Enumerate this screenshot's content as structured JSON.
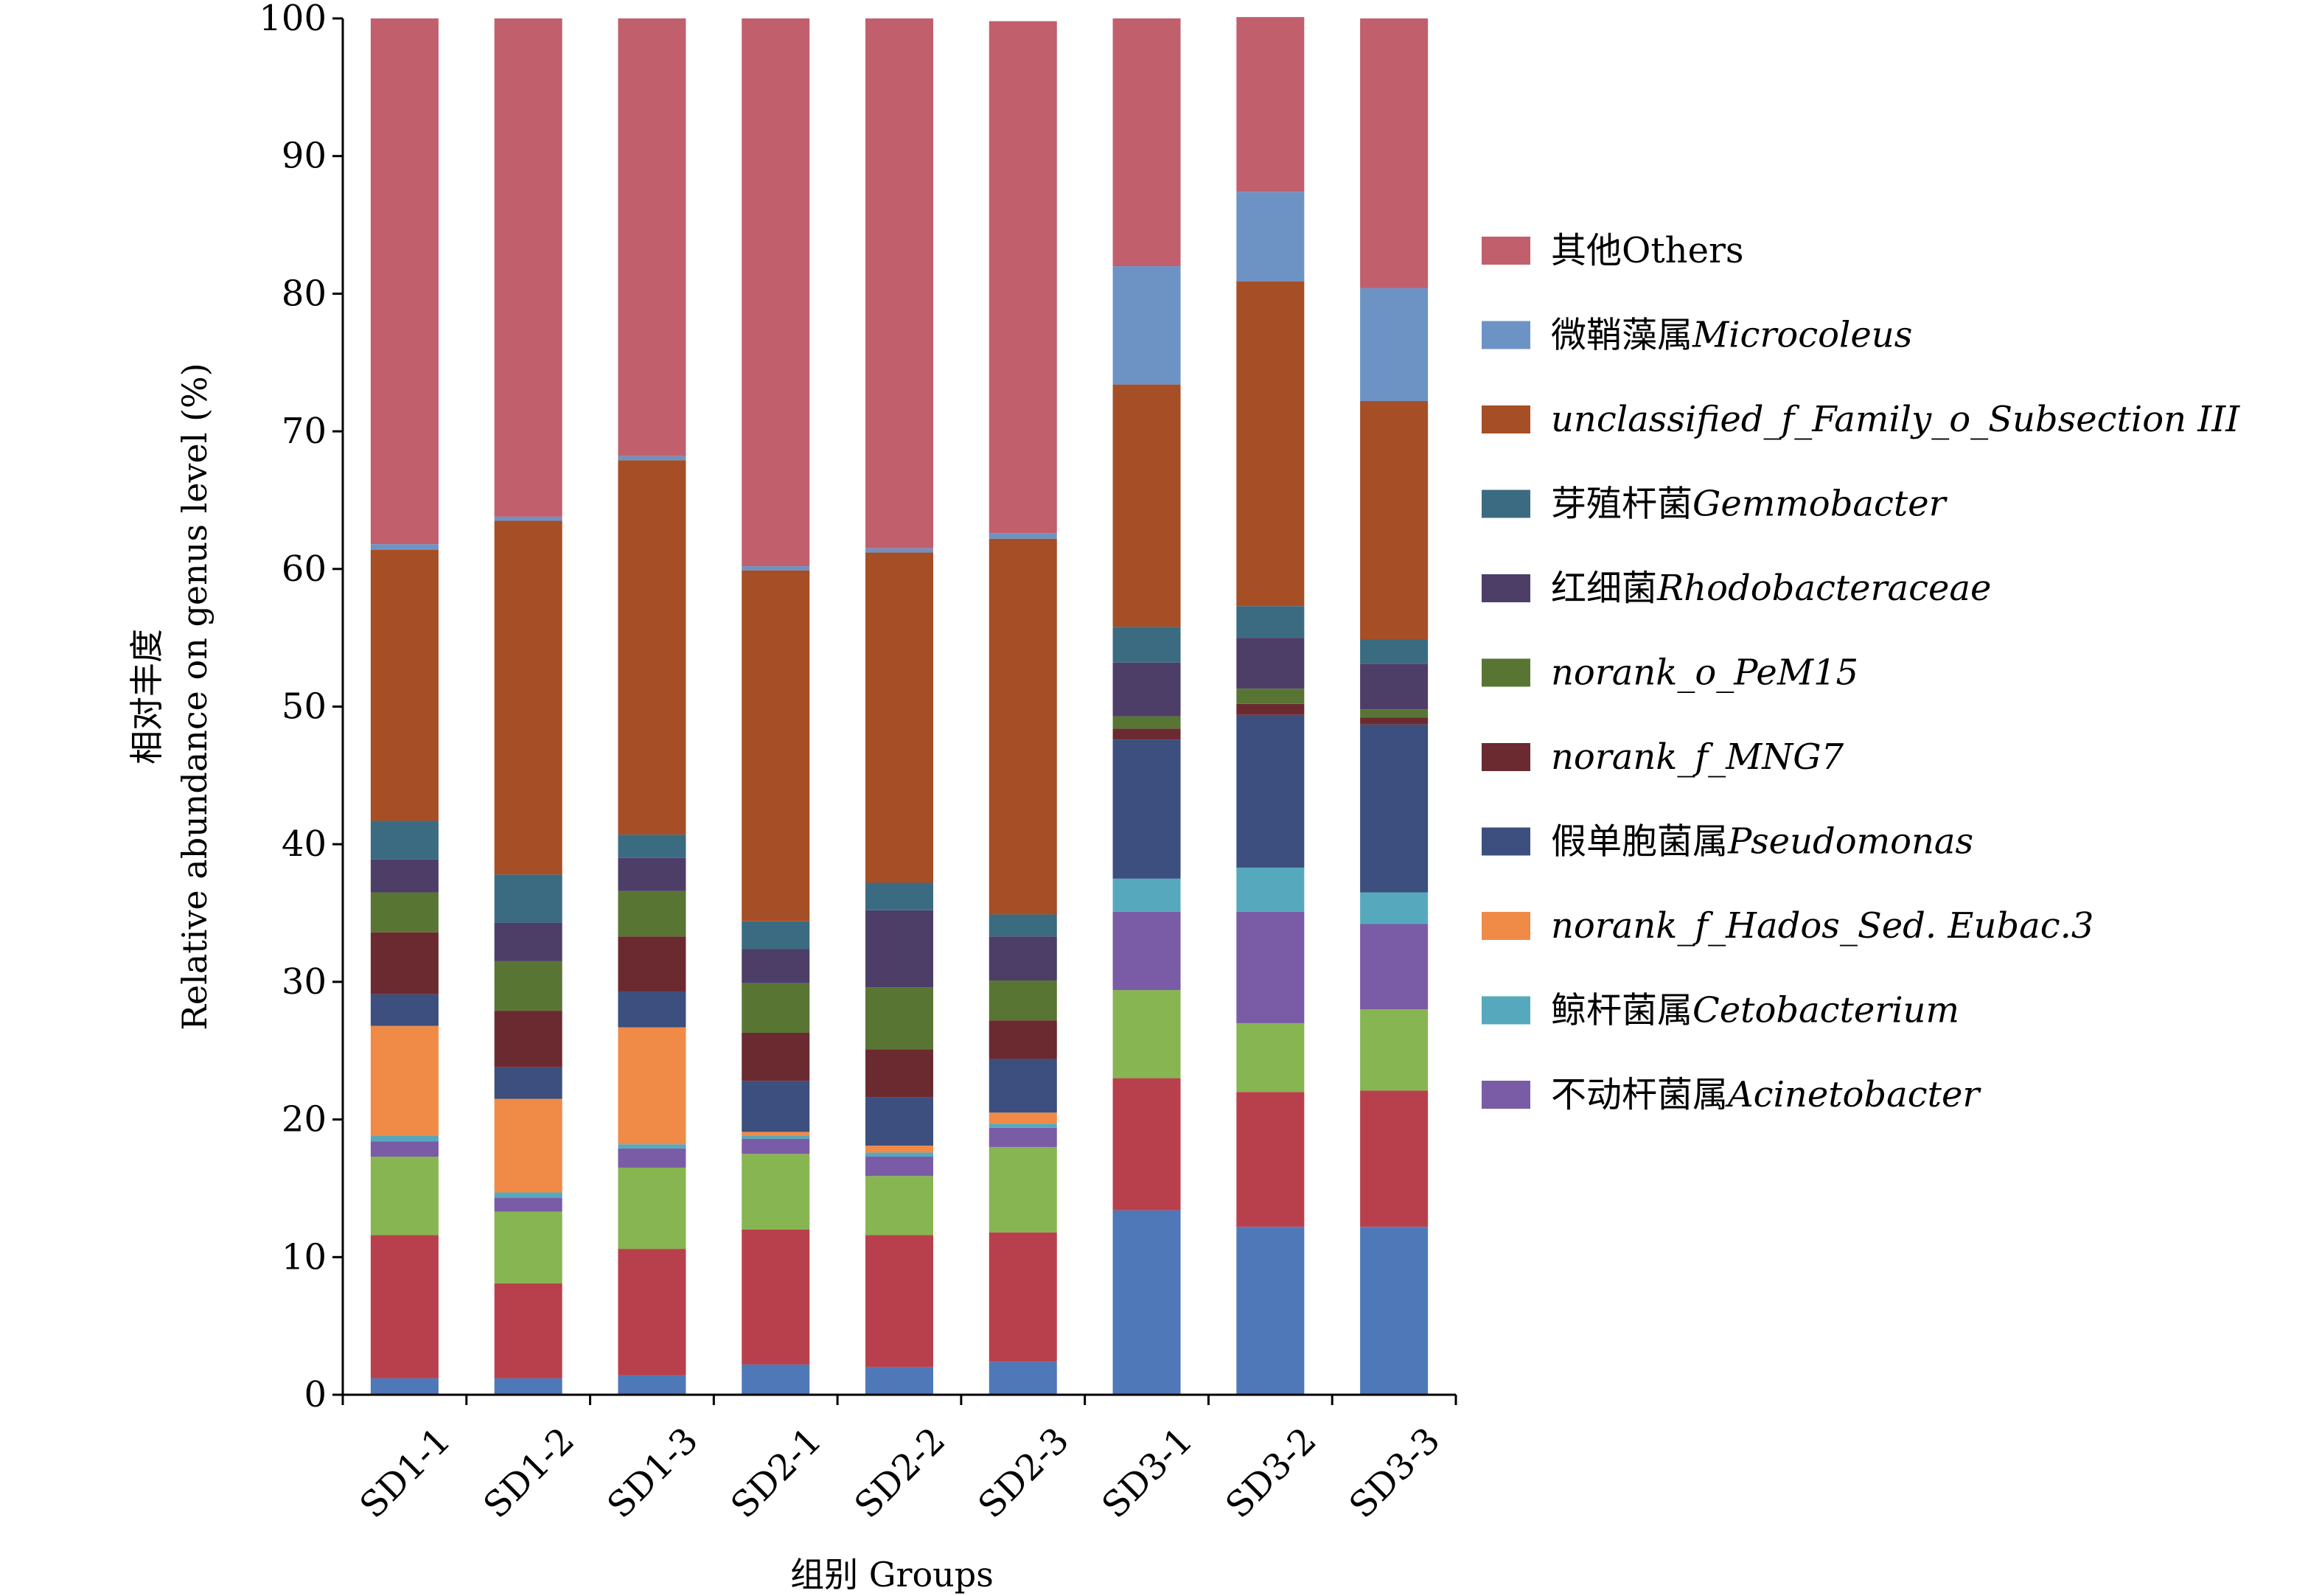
{
  "chart_data": {
    "type": "bar",
    "stacked": true,
    "xlabel": "组别 Groups",
    "ylabel": [
      "相对丰度",
      "Relative abundance on genus level (%)"
    ],
    "ylim": [
      0,
      100
    ],
    "yticks": [
      0,
      10,
      20,
      30,
      40,
      50,
      60,
      70,
      80,
      90,
      100
    ],
    "categories": [
      "SD1-1",
      "SD1-2",
      "SD1-3",
      "SD2-1",
      "SD2-2",
      "SD2-3",
      "SD3-1",
      "SD3-2",
      "SD3-3"
    ],
    "legend_position": "right",
    "series": [
      {
        "key": "s_bottom_blue",
        "color": "#4f78b8",
        "values": [
          1.2,
          1.2,
          1.4,
          2.2,
          2.0,
          2.4,
          13.4,
          12.2,
          12.2
        ]
      },
      {
        "key": "s_red",
        "color": "#b8404c",
        "values": [
          10.4,
          6.9,
          9.2,
          9.8,
          9.6,
          9.4,
          9.6,
          9.8,
          9.9
        ]
      },
      {
        "key": "s_green",
        "color": "#87b551",
        "values": [
          5.7,
          5.2,
          5.9,
          5.5,
          4.3,
          6.2,
          6.4,
          5.0,
          5.9
        ]
      },
      {
        "name": "不动杆菌属Acinetobacter",
        "name_zh": "不动杆菌属",
        "name_sci": "Acinetobacter",
        "italic": true,
        "color": "#7a5ba6",
        "values": [
          1.1,
          1.0,
          1.4,
          1.1,
          1.4,
          1.4,
          5.7,
          8.1,
          6.2
        ]
      },
      {
        "name": "鲸杆菌属Cetobacterium",
        "name_zh": "鲸杆菌属",
        "name_sci": "Cetobacterium",
        "italic": true,
        "color": "#56a9bd",
        "values": [
          0.4,
          0.4,
          0.3,
          0.2,
          0.3,
          0.3,
          2.4,
          3.2,
          2.3
        ]
      },
      {
        "name": "norank_f_Hados_Sed. Eubac.3",
        "name_zh": "",
        "name_sci": "norank_f_Hados_Sed. Eubac.3",
        "italic": true,
        "color": "#ef8a47",
        "values": [
          8.0,
          6.8,
          8.5,
          0.3,
          0.5,
          0.8,
          0.0,
          0.0,
          0.0
        ]
      },
      {
        "name": "假单胞菌属Pseudomonas",
        "name_zh": "假单胞菌属",
        "name_sci": "Pseudomonas",
        "italic": true,
        "color": "#3c4f7e",
        "values": [
          2.3,
          2.3,
          2.6,
          3.7,
          3.5,
          3.9,
          10.1,
          11.1,
          12.2
        ]
      },
      {
        "name": "norank_f_MNG7",
        "name_zh": "",
        "name_sci": "norank_f_MNG7",
        "italic": true,
        "color": "#6b2a30",
        "values": [
          4.5,
          4.1,
          4.0,
          3.5,
          3.5,
          2.8,
          0.8,
          0.8,
          0.5
        ]
      },
      {
        "name": "norank_o_PeM15",
        "name_zh": "",
        "name_sci": "norank_o_PeM15",
        "italic": true,
        "color": "#587534",
        "values": [
          2.9,
          3.6,
          3.3,
          3.6,
          4.5,
          2.9,
          0.9,
          1.1,
          0.6
        ]
      },
      {
        "name": "红细菌Rhodobacteraceae",
        "name_zh": "红细菌",
        "name_sci": "Rhodobacteraceae",
        "italic": true,
        "color": "#4d3e68",
        "values": [
          2.4,
          2.8,
          2.4,
          2.5,
          5.6,
          3.2,
          3.9,
          3.7,
          3.3
        ]
      },
      {
        "name": "芽殖杆菌Gemmobacter",
        "name_zh": "芽殖杆菌",
        "name_sci": "Gemmobacter",
        "italic": true,
        "color": "#3b6b80",
        "values": [
          2.8,
          3.5,
          1.7,
          2.0,
          2.0,
          1.6,
          2.6,
          2.3,
          1.8
        ]
      },
      {
        "name": "unclassified_f_Family_o_Subsection III",
        "name_zh": "",
        "name_sci": "unclassified_f_Family_o_Subsection III",
        "italic": true,
        "color": "#a64e26",
        "values": [
          19.7,
          25.7,
          27.2,
          25.5,
          24.0,
          27.3,
          17.6,
          23.6,
          17.3
        ]
      },
      {
        "name": "微鞘藻属Microcoleus",
        "name_zh": "微鞘藻属",
        "name_sci": "Microcoleus",
        "italic": true,
        "color": "#6d93c5",
        "values": [
          0.4,
          0.3,
          0.3,
          0.3,
          0.3,
          0.4,
          8.6,
          6.5,
          8.2
        ]
      },
      {
        "name": "其他Others",
        "name_zh": "其他",
        "name_sci": "Others",
        "italic": false,
        "color": "#c15f6d",
        "values": [
          38.2,
          36.2,
          31.8,
          39.8,
          38.5,
          37.2,
          18.0,
          12.7,
          19.6
        ]
      }
    ],
    "legend_order": [
      "其他Others",
      "微鞘藻属Microcoleus",
      "unclassified_f_Family_o_Subsection III",
      "芽殖杆菌Gemmobacter",
      "红细菌Rhodobacteraceae",
      "norank_o_PeM15",
      "norank_f_MNG7",
      "假单胞菌属Pseudomonas",
      "norank_f_Hados_Sed. Eubac.3",
      "鲸杆菌属Cetobacterium",
      "不动杆菌属Acinetobacter"
    ]
  }
}
